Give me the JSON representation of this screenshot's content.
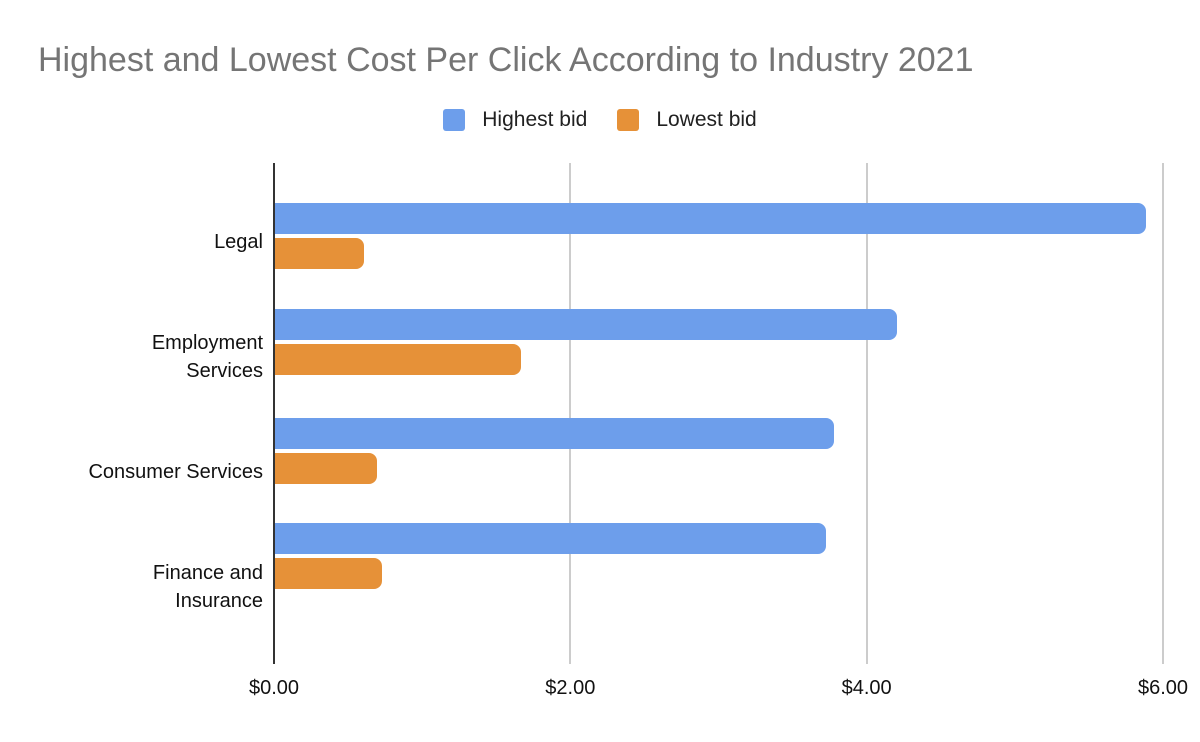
{
  "chart_data": {
    "type": "bar",
    "orientation": "horizontal",
    "title": "Highest and Lowest Cost Per Click According to Industry 2021",
    "categories": [
      "Legal",
      "Employment Services",
      "Consumer Services",
      "Finance and Insurance"
    ],
    "category_display_lines": [
      [
        "Legal"
      ],
      [
        "Employment",
        "Services"
      ],
      [
        "Consumer Services"
      ],
      [
        "Finance and",
        "Insurance"
      ]
    ],
    "series": [
      {
        "name": "Highest bid",
        "color": "#6d9eeb",
        "values": [
          5.88,
          4.2,
          3.77,
          3.72
        ]
      },
      {
        "name": "Lowest bid",
        "color": "#e69138",
        "values": [
          0.6,
          1.66,
          0.69,
          0.72
        ]
      }
    ],
    "x_axis": {
      "tick_labels": [
        "$0.00",
        "$2.00",
        "$4.00",
        "$6.00"
      ],
      "tick_values": [
        0,
        2,
        4,
        6
      ],
      "min": 0,
      "max": 6,
      "grid": true
    },
    "legend_position": "top",
    "colors": {
      "background": "#ffffff",
      "title_text": "#757575",
      "axis_line": "#333333",
      "gridline": "#cccccc",
      "label_text": "#111111"
    }
  }
}
